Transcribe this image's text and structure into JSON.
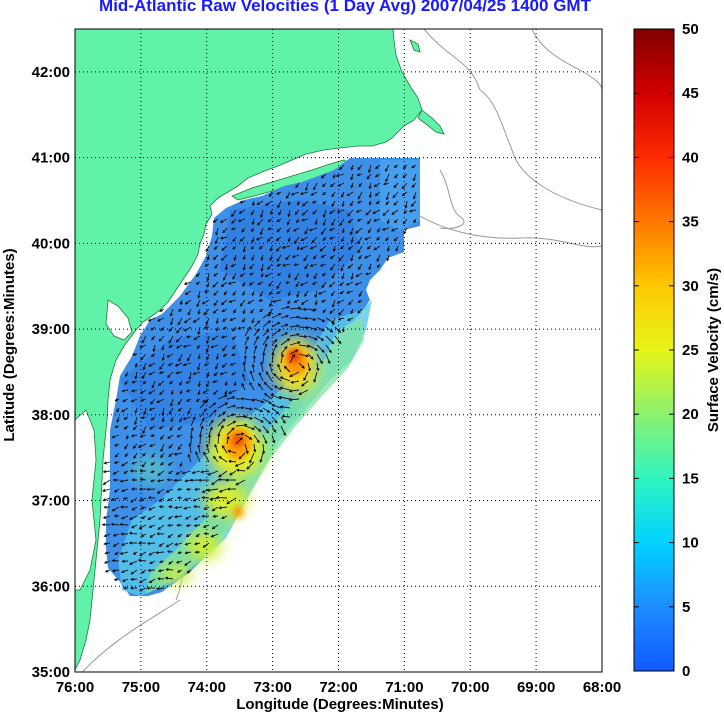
{
  "title": "Mid-Atlantic Raw Velocities (1 Day Avg) 2007/04/25 1400 GMT",
  "xlabel": "Longitude (Degrees:Minutes)",
  "ylabel": "Latitude (Degrees:Minutes)",
  "colorbar_label": "Surface Velocity (cm/s)",
  "x_ticks": [
    "76:00",
    "75:00",
    "74:00",
    "73:00",
    "72:00",
    "71:00",
    "70:00",
    "69:00",
    "68:00"
  ],
  "y_ticks": [
    "42:00",
    "41:00",
    "40:00",
    "39:00",
    "38:00",
    "37:00",
    "36:00",
    "35:00"
  ],
  "colorbar_ticks": [
    "50",
    "45",
    "40",
    "35",
    "30",
    "25",
    "20",
    "15",
    "10",
    "5",
    "0"
  ],
  "colors": {
    "land": "#5ff2a8",
    "title": "#1a1aff",
    "grid": "#000000",
    "isobath": "#9a9a9a"
  },
  "chart_data": {
    "type": "heatmap",
    "title": "Mid-Atlantic Raw Velocities (1 Day Avg) 2007/04/25 1400 GMT",
    "xlabel": "Longitude (Degrees:Minutes)",
    "ylabel": "Latitude (Degrees:Minutes)",
    "xlim": [
      -76,
      -68
    ],
    "ylim": [
      35,
      42.5
    ],
    "colorbar": {
      "label": "Surface Velocity (cm/s)",
      "range": [
        0,
        50
      ],
      "colormap": "jet"
    },
    "hotspots": [
      {
        "lon": -72.6,
        "lat": 38.6,
        "speed": 32
      },
      {
        "lon": -73.45,
        "lat": 37.65,
        "speed": 30
      },
      {
        "lon": -73.6,
        "lat": 37.1,
        "speed": 24
      },
      {
        "lon": -73.9,
        "lat": 36.55,
        "speed": 22
      },
      {
        "lon": -74.25,
        "lat": 36.25,
        "speed": 20
      }
    ],
    "grid": true
  }
}
